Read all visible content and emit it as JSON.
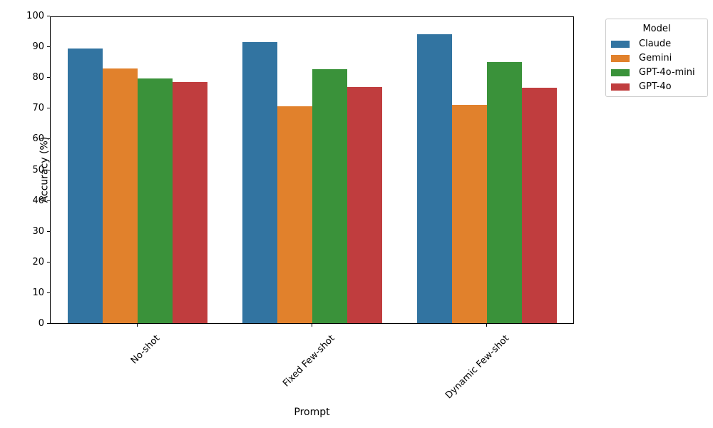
{
  "figure": {
    "xlabel": "Prompt",
    "ylabel": "Accuracy (%)"
  },
  "chart_data": {
    "type": "bar",
    "title": "",
    "xlabel": "Prompt",
    "ylabel": "Accuracy (%)",
    "categories": [
      "No-shot",
      "Fixed Few-shot",
      "Dynamic Few-shot"
    ],
    "series": [
      {
        "name": "Claude",
        "color": "#3274A1",
        "values": [
          89.3,
          91.5,
          94.0
        ]
      },
      {
        "name": "Gemini",
        "color": "#E1812C",
        "values": [
          82.9,
          70.5,
          71.0
        ]
      },
      {
        "name": "GPT-4o-mini",
        "color": "#3A923A",
        "values": [
          79.5,
          82.5,
          85.0
        ]
      },
      {
        "name": "GPT-4o",
        "color": "#C03D3E",
        "values": [
          78.5,
          76.7,
          76.5
        ]
      }
    ],
    "ylim": [
      0,
      100
    ],
    "ytick_step": 10,
    "grid": false,
    "legend": {
      "title": "Model",
      "position": "upper right, outside plot"
    }
  }
}
